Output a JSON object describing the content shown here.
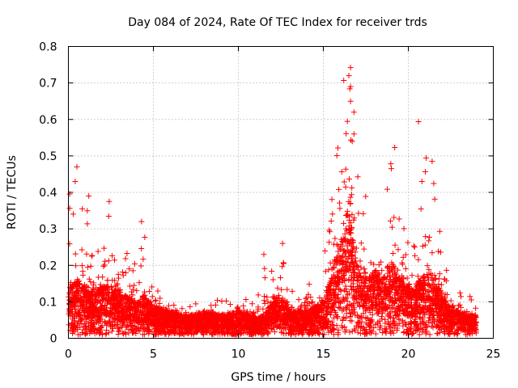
{
  "chart_data": {
    "type": "scatter",
    "title": "Day 084 of 2024, Rate Of TEC Index for receiver trds",
    "xlabel": "GPS time / hours",
    "ylabel": "ROTI / TECUs",
    "xlim": [
      0,
      25
    ],
    "ylim": [
      0,
      0.8
    ],
    "x_ticks": [
      0,
      5,
      10,
      15,
      20,
      25
    ],
    "x_tick_labels": [
      "0",
      "5",
      "10",
      "15",
      "20",
      "25"
    ],
    "y_ticks": [
      0,
      0.1,
      0.2,
      0.3,
      0.4,
      0.5,
      0.6,
      0.7,
      0.8
    ],
    "y_tick_labels": [
      "0",
      "0.1",
      "0.2",
      "0.3",
      "0.4",
      "0.5",
      "0.6",
      "0.7",
      "0.8"
    ],
    "grid": true,
    "marker": "plus",
    "color": "#ff0000",
    "envelope_x": [
      0,
      0.5,
      1,
      1.5,
      2,
      2.5,
      3,
      3.5,
      4,
      4.5,
      5,
      6,
      7,
      8,
      9,
      10,
      11,
      11.5,
      12,
      12.5,
      13,
      13.5,
      14,
      14.5,
      15,
      15.5,
      16,
      16.5,
      17,
      17.5,
      18,
      18.5,
      19,
      19.5,
      20,
      20.5,
      21,
      21.5,
      22,
      22.5,
      23,
      23.5,
      24
    ],
    "envelope_median": [
      0.1,
      0.11,
      0.1,
      0.09,
      0.1,
      0.11,
      0.09,
      0.08,
      0.07,
      0.08,
      0.06,
      0.05,
      0.04,
      0.05,
      0.04,
      0.05,
      0.04,
      0.04,
      0.07,
      0.08,
      0.05,
      0.05,
      0.05,
      0.06,
      0.07,
      0.12,
      0.2,
      0.24,
      0.16,
      0.12,
      0.13,
      0.12,
      0.14,
      0.12,
      0.1,
      0.1,
      0.12,
      0.12,
      0.08,
      0.06,
      0.05,
      0.04,
      0.04
    ],
    "envelope_max": [
      0.4,
      0.46,
      0.38,
      0.3,
      0.29,
      0.38,
      0.3,
      0.26,
      0.22,
      0.32,
      0.15,
      0.1,
      0.09,
      0.1,
      0.11,
      0.13,
      0.1,
      0.23,
      0.2,
      0.26,
      0.15,
      0.16,
      0.14,
      0.21,
      0.24,
      0.38,
      0.7,
      0.74,
      0.5,
      0.4,
      0.37,
      0.41,
      0.52,
      0.33,
      0.3,
      0.42,
      0.59,
      0.48,
      0.28,
      0.16,
      0.14,
      0.15,
      0.08
    ],
    "highlight_points": [
      {
        "x": 16.2,
        "y": 0.707
      },
      {
        "x": 16.6,
        "y": 0.742
      },
      {
        "x": 16.5,
        "y": 0.72
      },
      {
        "x": 16.6,
        "y": 0.69
      },
      {
        "x": 16.6,
        "y": 0.65
      },
      {
        "x": 16.8,
        "y": 0.62
      },
      {
        "x": 20.6,
        "y": 0.594
      },
      {
        "x": 19.2,
        "y": 0.523
      },
      {
        "x": 16.8,
        "y": 0.56
      },
      {
        "x": 16.7,
        "y": 0.54
      },
      {
        "x": 0.5,
        "y": 0.47
      },
      {
        "x": 0.4,
        "y": 0.43
      },
      {
        "x": 19.0,
        "y": 0.465
      },
      {
        "x": 21.4,
        "y": 0.485
      },
      {
        "x": 20.8,
        "y": 0.43
      },
      {
        "x": 11.5,
        "y": 0.23
      },
      {
        "x": 12.6,
        "y": 0.26
      },
      {
        "x": 4.3,
        "y": 0.32
      },
      {
        "x": 1.2,
        "y": 0.39
      },
      {
        "x": 2.4,
        "y": 0.375
      }
    ]
  }
}
